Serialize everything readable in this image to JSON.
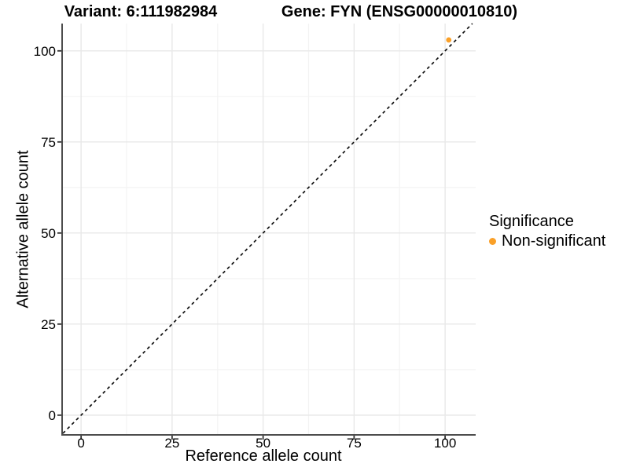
{
  "chart_data": {
    "type": "scatter",
    "titles": [
      "Variant: 6:111982984",
      "Gene: FYN (ENSG00000010810)"
    ],
    "xlabel": "Reference allele count",
    "ylabel": "Alternative allele count",
    "xlim": [
      -5,
      108.4
    ],
    "ylim": [
      -5.2,
      107.5
    ],
    "xticks": [
      0,
      25,
      50,
      75,
      100
    ],
    "yticks": [
      0,
      25,
      50,
      75,
      100
    ],
    "minor_grid_step": 12.5,
    "grid": "major+minor",
    "reference_line": {
      "type": "identity y=x",
      "style": "dashed",
      "color": "#111111"
    },
    "series": [
      {
        "name": "Non-significant",
        "color": "#FAA028",
        "points": [
          {
            "x": 101,
            "y": 103
          }
        ]
      }
    ],
    "legend": {
      "title": "Significance",
      "position": "right"
    }
  },
  "colors": {
    "axis_line": "#4D4D4D",
    "tick_mark": "#333333",
    "grid_major": "#E8E8E8",
    "grid_minor": "#F3F3F3",
    "text": "#000000",
    "background": "#FFFFFF",
    "point_orange": "#FAA028"
  }
}
